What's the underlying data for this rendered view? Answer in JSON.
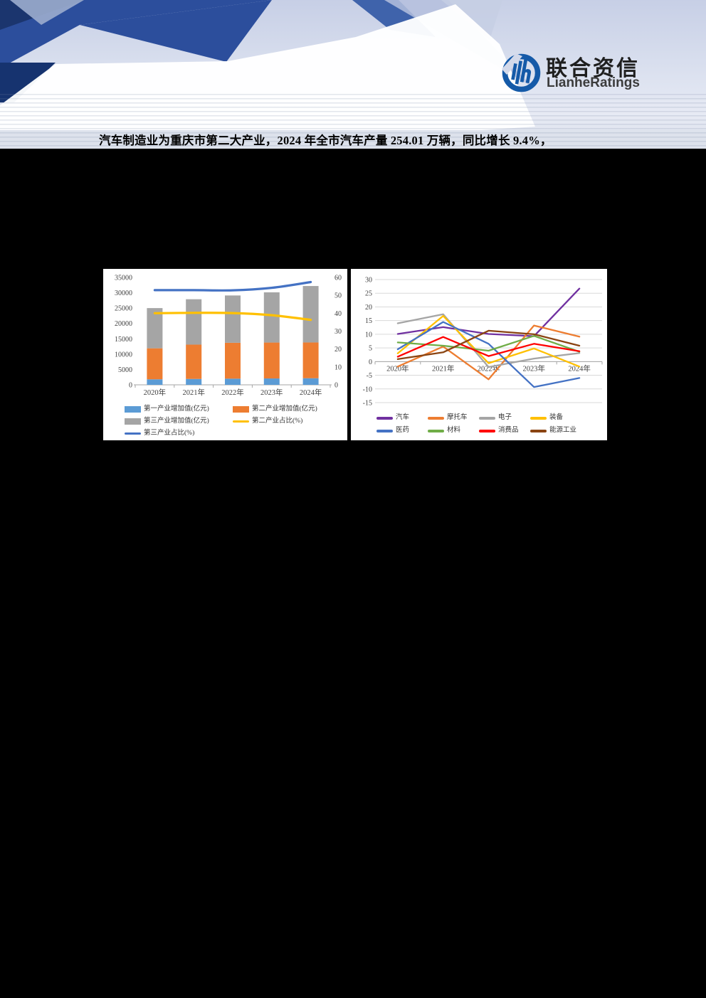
{
  "header": {
    "logo": {
      "brand_cn": "联合资信",
      "brand_en": "LianheRatings",
      "mark_color": "#155AA8",
      "text_color": "#1F1F1F"
    }
  },
  "headline": "汽车制造业为重庆市第二大产业，2024 年全市汽车产量 254.01 万辆，同比增长 9.4%，",
  "chart_data": [
    {
      "id": "gdp-structure",
      "type": "bar",
      "title": "",
      "categories": [
        "2020年",
        "2021年",
        "2022年",
        "2023年",
        "2024年"
      ],
      "bar_series": [
        {
          "name": "第一产业增加值(亿元)",
          "color": "#5B9BD5",
          "values": [
            1803,
            1922,
            2012,
            2075,
            2152
          ]
        },
        {
          "name": "第二产业增加值(亿元)",
          "color": "#ED7D31",
          "values": [
            10100,
            11180,
            11690,
            11700,
            11650
          ]
        },
        {
          "name": "第三产业增加值(亿元)",
          "color": "#A5A5A5",
          "values": [
            13100,
            14790,
            15420,
            16370,
            18400
          ]
        }
      ],
      "line_series": [
        {
          "name": "第二产业占比(%)",
          "color": "#FFC000",
          "axis": "right",
          "smooth": true,
          "values": [
            40.0,
            40.2,
            40.1,
            38.9,
            36.3
          ]
        },
        {
          "name": "第三产业占比(%)",
          "color": "#4472C4",
          "axis": "right",
          "smooth": true,
          "values": [
            52.9,
            52.9,
            52.8,
            54.2,
            57.4
          ]
        }
      ],
      "axes": {
        "left": {
          "min": 0,
          "max": 35000,
          "step": 5000
        },
        "right": {
          "min": 0,
          "max": 60,
          "step": 10
        }
      },
      "grid": false,
      "legend_position": "bottom"
    },
    {
      "id": "industry-growth",
      "type": "line",
      "title": "",
      "categories": [
        "2020年",
        "2021年",
        "2022年",
        "2023年",
        "2024年"
      ],
      "series": [
        {
          "name": "汽车",
          "color": "#7030A0",
          "values": [
            10.1,
            12.6,
            10.1,
            9.3,
            26.7
          ]
        },
        {
          "name": "摩托车",
          "color": "#ED7D31",
          "values": [
            -1.8,
            5.5,
            -6.5,
            13.2,
            9.1
          ]
        },
        {
          "name": "电子",
          "color": "#A5A5A5",
          "values": [
            14.0,
            17.3,
            -2.0,
            1.1,
            3.1
          ]
        },
        {
          "name": "装备",
          "color": "#FFC000",
          "values": [
            3.0,
            16.7,
            -0.6,
            4.8,
            -1.8
          ]
        },
        {
          "name": "医药",
          "color": "#4472C4",
          "values": [
            4.5,
            14.5,
            6.5,
            -9.3,
            -6.0
          ]
        },
        {
          "name": "材料",
          "color": "#70AD47",
          "values": [
            7.0,
            5.8,
            4.0,
            9.4,
            3.6
          ]
        },
        {
          "name": "消费品",
          "color": "#FF0000",
          "values": [
            1.8,
            9.0,
            2.0,
            6.5,
            3.8
          ]
        },
        {
          "name": "能源工业",
          "color": "#8A4412",
          "values": [
            0.9,
            3.4,
            11.3,
            10.0,
            5.8
          ]
        }
      ],
      "axes": {
        "left": {
          "min": -15,
          "max": 30,
          "step": 5
        }
      },
      "grid": true,
      "legend_position": "bottom",
      "style": {
        "grid_color": "#D9D9D9",
        "axis_color": "#A6A6A6",
        "tick_text_color": "#404040"
      }
    }
  ]
}
